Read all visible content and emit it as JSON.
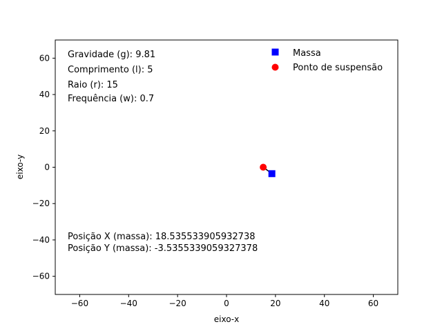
{
  "chart_data": {
    "type": "scatter",
    "xlabel": "eixo-x",
    "ylabel": "eixo-y",
    "xlim": [
      -70,
      70
    ],
    "ylim": [
      -70,
      70
    ],
    "xticks": [
      -60,
      -40,
      -20,
      0,
      20,
      40,
      60
    ],
    "yticks": [
      -60,
      -40,
      -20,
      0,
      20,
      40,
      60
    ],
    "tick_labels_x": [
      "−60",
      "−40",
      "−20",
      "0",
      "20",
      "40",
      "60"
    ],
    "tick_labels_y": [
      "−60",
      "−40",
      "−20",
      "0",
      "20",
      "40",
      "60"
    ],
    "grid": false,
    "legend_position": "top-right",
    "series": [
      {
        "name": "Massa",
        "marker": "square",
        "color": "#0000ff",
        "points": [
          [
            18.535533905932738,
            -3.5355339059327378
          ]
        ]
      },
      {
        "name": "Ponto de suspensão",
        "marker": "circle",
        "color": "#ff0000",
        "points": [
          [
            15,
            0
          ]
        ]
      }
    ],
    "rod": {
      "from": [
        15,
        0
      ],
      "to": [
        18.535533905932738,
        -3.5355339059327378
      ],
      "color": "#000000"
    },
    "annotations": {
      "gravity": "Gravidade (g): 9.81",
      "length": "Comprimento (l): 5",
      "radius": "Raio (r): 15",
      "frequency": "Frequência (w): 0.7",
      "pos_x": "Posição X (massa): 18.535533905932738",
      "pos_y": "Posição Y (massa): -3.5355339059327378"
    }
  }
}
